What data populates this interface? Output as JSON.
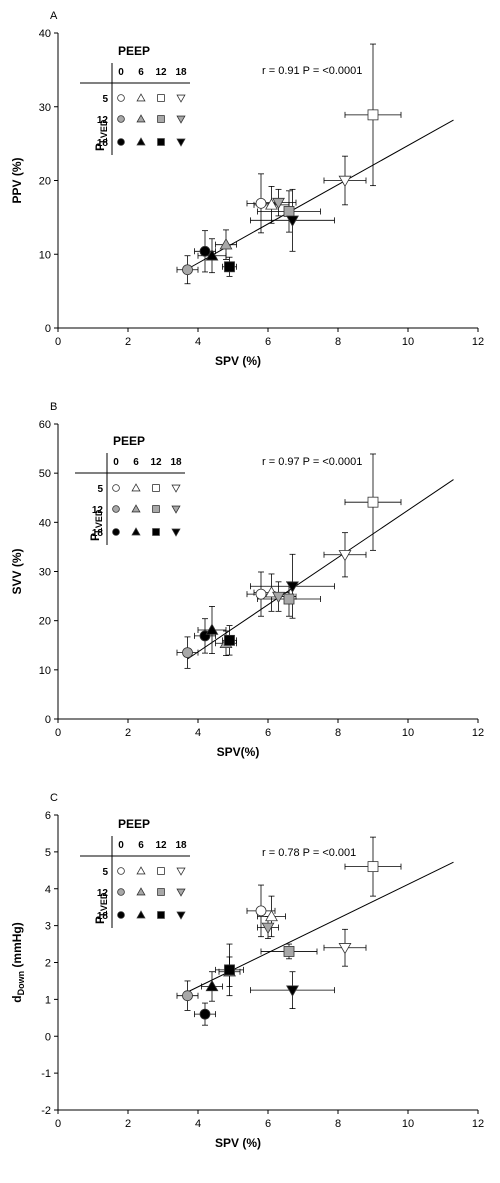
{
  "figure": {
    "legend": {
      "title": "PEEP",
      "column_labels": [
        "0",
        "6",
        "12",
        "18"
      ],
      "row_labels": [
        "5",
        "12",
        "18"
      ],
      "row_title_main": "P",
      "row_title_sub": "LVED",
      "shapes": [
        "circle",
        "triangle-up",
        "square",
        "triangle-down"
      ],
      "fills": [
        "#ffffff",
        "#a8a8a8",
        "#000000"
      ]
    }
  },
  "chart_data": [
    {
      "type": "scatter",
      "panel_label": "A",
      "stat_text": "r = 0.91 P = <0.0001",
      "xlabel": "SPV (%)",
      "ylabel": "PPV (%)",
      "xlim": [
        0,
        12
      ],
      "ylim": [
        0,
        40
      ],
      "xticks": [
        0,
        2,
        4,
        6,
        8,
        10,
        12
      ],
      "yticks": [
        0,
        10,
        20,
        30,
        40
      ],
      "regression": {
        "x": [
          3.7,
          11.3
        ],
        "y": [
          8.0,
          28.2
        ]
      },
      "points": [
        {
          "peep": 0,
          "plved": 5,
          "x": 5.8,
          "y": 16.9,
          "xerr": 0.4,
          "yerr": 4.0
        },
        {
          "peep": 6,
          "plved": 5,
          "x": 6.1,
          "y": 16.7,
          "xerr": 0.5,
          "yerr": 2.5
        },
        {
          "peep": 12,
          "plved": 5,
          "x": 9.0,
          "y": 28.9,
          "xerr": 0.8,
          "yerr": 9.6
        },
        {
          "peep": 18,
          "plved": 5,
          "x": 8.2,
          "y": 20.0,
          "xerr": 0.6,
          "yerr": 3.3
        },
        {
          "peep": 0,
          "plved": 12,
          "x": 3.7,
          "y": 7.9,
          "xerr": 0.3,
          "yerr": 1.9
        },
        {
          "peep": 6,
          "plved": 12,
          "x": 4.8,
          "y": 11.3,
          "xerr": 0.3,
          "yerr": 2.0
        },
        {
          "peep": 12,
          "plved": 12,
          "x": 6.6,
          "y": 15.8,
          "xerr": 0.9,
          "yerr": 2.8
        },
        {
          "peep": 18,
          "plved": 12,
          "x": 6.3,
          "y": 17.0,
          "xerr": 0.5,
          "yerr": 1.8
        },
        {
          "peep": 0,
          "plved": 18,
          "x": 4.2,
          "y": 10.4,
          "xerr": 0.3,
          "yerr": 2.8
        },
        {
          "peep": 6,
          "plved": 18,
          "x": 4.4,
          "y": 9.8,
          "xerr": 0.4,
          "yerr": 2.3
        },
        {
          "peep": 12,
          "plved": 18,
          "x": 4.9,
          "y": 8.3,
          "xerr": 0.2,
          "yerr": 1.3
        },
        {
          "peep": 18,
          "plved": 18,
          "x": 6.7,
          "y": 14.6,
          "xerr": 1.2,
          "yerr": 4.2
        }
      ]
    },
    {
      "type": "scatter",
      "panel_label": "B",
      "stat_text": "r = 0.97 P = <0.0001",
      "xlabel": "SPV(%)",
      "ylabel": "SVV (%)",
      "xlim": [
        0,
        12
      ],
      "ylim": [
        0,
        60
      ],
      "xticks": [
        0,
        2,
        4,
        6,
        8,
        10,
        12
      ],
      "yticks": [
        0,
        10,
        20,
        30,
        40,
        50,
        60
      ],
      "regression": {
        "x": [
          3.7,
          11.3
        ],
        "y": [
          12.2,
          48.7
        ]
      },
      "points": [
        {
          "peep": 0,
          "plved": 5,
          "x": 5.8,
          "y": 25.4,
          "xerr": 0.4,
          "yerr": 4.5
        },
        {
          "peep": 6,
          "plved": 5,
          "x": 6.1,
          "y": 25.7,
          "xerr": 0.5,
          "yerr": 3.8
        },
        {
          "peep": 12,
          "plved": 5,
          "x": 9.0,
          "y": 44.1,
          "xerr": 0.8,
          "yerr": 9.8
        },
        {
          "peep": 18,
          "plved": 5,
          "x": 8.2,
          "y": 33.4,
          "xerr": 0.6,
          "yerr": 4.5
        },
        {
          "peep": 0,
          "plved": 12,
          "x": 3.7,
          "y": 13.5,
          "xerr": 0.3,
          "yerr": 3.2
        },
        {
          "peep": 6,
          "plved": 12,
          "x": 4.8,
          "y": 15.4,
          "xerr": 0.3,
          "yerr": 2.5
        },
        {
          "peep": 12,
          "plved": 12,
          "x": 6.6,
          "y": 24.4,
          "xerr": 0.9,
          "yerr": 3.5
        },
        {
          "peep": 18,
          "plved": 12,
          "x": 6.3,
          "y": 24.9,
          "xerr": 0.5,
          "yerr": 3.0
        },
        {
          "peep": 0,
          "plved": 18,
          "x": 4.2,
          "y": 16.9,
          "xerr": 0.3,
          "yerr": 3.5
        },
        {
          "peep": 6,
          "plved": 18,
          "x": 4.4,
          "y": 18.1,
          "xerr": 0.4,
          "yerr": 4.8
        },
        {
          "peep": 12,
          "plved": 18,
          "x": 4.9,
          "y": 16.0,
          "xerr": 0.2,
          "yerr": 3.0
        },
        {
          "peep": 18,
          "plved": 18,
          "x": 6.7,
          "y": 27.0,
          "xerr": 1.2,
          "yerr": 6.5
        }
      ]
    },
    {
      "type": "scatter",
      "panel_label": "C",
      "stat_text": "r = 0.78 P = <0.001",
      "xlabel": "SPV (%)",
      "ylabel_main": "d",
      "ylabel_sub": "Down",
      "ylabel_unit": " (mmHg)",
      "xlim": [
        0,
        12
      ],
      "ylim": [
        -2,
        6
      ],
      "xticks": [
        0,
        2,
        4,
        6,
        8,
        10,
        12
      ],
      "yticks": [
        -2,
        -1,
        0,
        1,
        2,
        3,
        4,
        5,
        6
      ],
      "regression": {
        "x": [
          3.7,
          11.3
        ],
        "y": [
          1.2,
          4.72
        ]
      },
      "points": [
        {
          "peep": 0,
          "plved": 5,
          "x": 5.8,
          "y": 3.4,
          "xerr": 0.4,
          "yerr": 0.7
        },
        {
          "peep": 6,
          "plved": 5,
          "x": 6.1,
          "y": 3.25,
          "xerr": 0.4,
          "yerr": 0.55
        },
        {
          "peep": 12,
          "plved": 5,
          "x": 9.0,
          "y": 4.6,
          "xerr": 0.8,
          "yerr": 0.8
        },
        {
          "peep": 18,
          "plved": 5,
          "x": 8.2,
          "y": 2.4,
          "xerr": 0.6,
          "yerr": 0.5
        },
        {
          "peep": 0,
          "plved": 12,
          "x": 3.7,
          "y": 1.1,
          "xerr": 0.3,
          "yerr": 0.4
        },
        {
          "peep": 6,
          "plved": 12,
          "x": 4.9,
          "y": 1.75,
          "xerr": 0.3,
          "yerr": 0.4
        },
        {
          "peep": 12,
          "plved": 12,
          "x": 6.6,
          "y": 2.3,
          "xerr": 0.8,
          "yerr": 0.2
        },
        {
          "peep": 18,
          "plved": 12,
          "x": 6.0,
          "y": 2.95,
          "xerr": 0.3,
          "yerr": 0.3
        },
        {
          "peep": 0,
          "plved": 18,
          "x": 4.2,
          "y": 0.6,
          "xerr": 0.3,
          "yerr": 0.3
        },
        {
          "peep": 6,
          "plved": 18,
          "x": 4.4,
          "y": 1.35,
          "xerr": 0.3,
          "yerr": 0.4
        },
        {
          "peep": 12,
          "plved": 18,
          "x": 4.9,
          "y": 1.8,
          "xerr": 0.4,
          "yerr": 0.7
        },
        {
          "peep": 18,
          "plved": 18,
          "x": 6.7,
          "y": 1.25,
          "xerr": 1.2,
          "yerr": 0.5
        }
      ]
    }
  ]
}
